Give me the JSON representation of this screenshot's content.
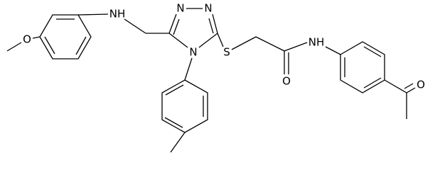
{
  "atoms": {
    "methoxy_o": "O",
    "amine_nh": "NH",
    "triazole_n1": "N",
    "triazole_n2": "N",
    "triazole_n4": "N",
    "sulfur": "S",
    "carbonyl_o": "O",
    "amide_nh": "NH",
    "acetyl_o": "O"
  }
}
